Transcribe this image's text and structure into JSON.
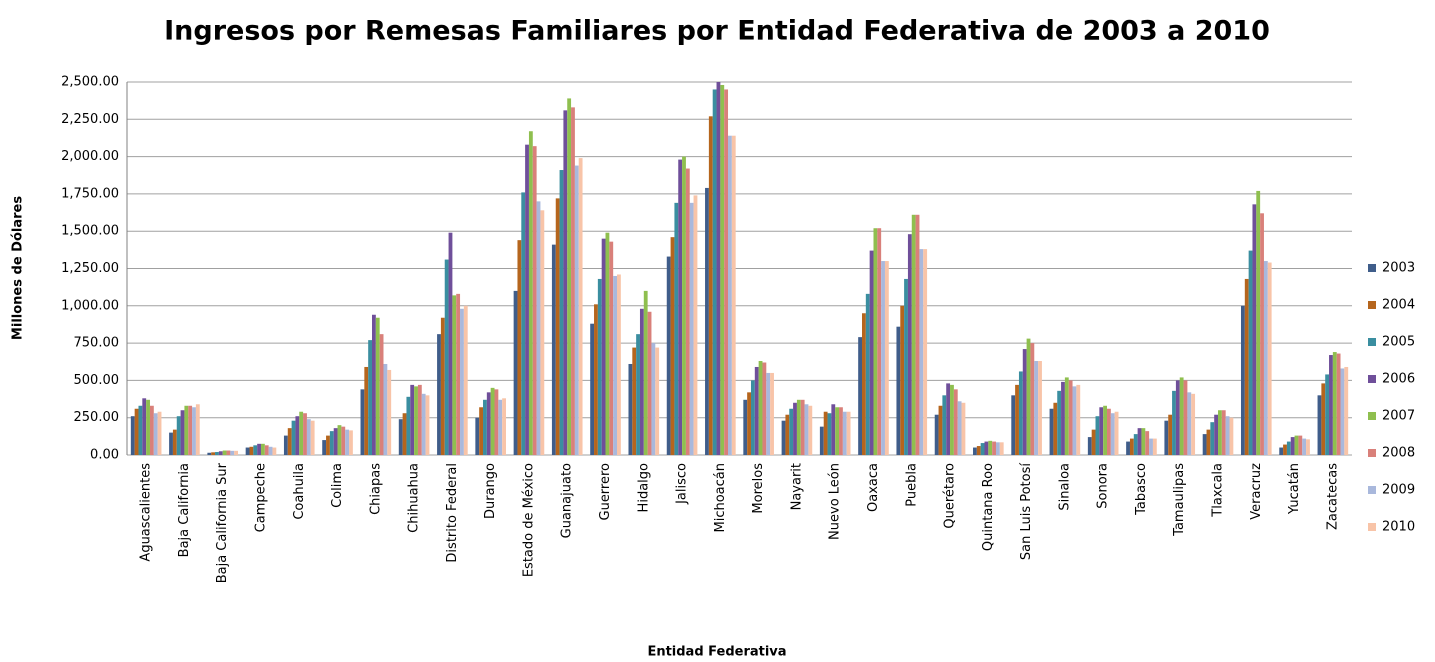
{
  "chart_data": {
    "type": "bar",
    "title": "Ingresos por Remesas Familiares por Entidad Federativa de 2003 a 2010",
    "x_label": "Entidad Federativa",
    "y_label": "Millones de Dólares",
    "categories": [
      "Aguascalientes",
      "Baja California",
      "Baja California Sur",
      "Campeche",
      "Coahuila",
      "Colima",
      "Chiapas",
      "Chihuahua",
      "Distrito Federal",
      "Durango",
      "Estado de México",
      "Guanajuato",
      "Guerrero",
      "Hidalgo",
      "Jalisco",
      "Michoacán",
      "Morelos",
      "Nayarit",
      "Nuevo León",
      "Oaxaca",
      "Puebla",
      "Querétaro",
      "Quintana Roo",
      "San Luis Potosí",
      "Sinaloa",
      "Sonora",
      "Tabasco",
      "Tamaulipas",
      "Tlaxcala",
      "Veracruz",
      "Yucatán",
      "Zacatecas"
    ],
    "series": [
      {
        "name": "2003",
        "color": "#3f5d8a",
        "values": [
          260,
          150,
          15,
          50,
          130,
          100,
          440,
          240,
          810,
          250,
          1100,
          1410,
          880,
          610,
          1330,
          1790,
          370,
          230,
          190,
          790,
          860,
          270,
          50,
          400,
          310,
          120,
          90,
          230,
          140,
          1000,
          50,
          400
        ]
      },
      {
        "name": "2004",
        "color": "#b5651d",
        "values": [
          310,
          170,
          18,
          55,
          180,
          130,
          590,
          280,
          920,
          320,
          1440,
          1720,
          1010,
          720,
          1460,
          2270,
          420,
          270,
          290,
          950,
          1000,
          330,
          60,
          470,
          350,
          170,
          110,
          270,
          170,
          1180,
          70,
          480
        ]
      },
      {
        "name": "2005",
        "color": "#3a8ea0",
        "values": [
          330,
          260,
          20,
          65,
          230,
          160,
          770,
          390,
          1310,
          370,
          1760,
          1910,
          1180,
          810,
          1690,
          2450,
          500,
          310,
          280,
          1080,
          1180,
          400,
          80,
          560,
          430,
          260,
          140,
          430,
          220,
          1370,
          90,
          540
        ]
      },
      {
        "name": "2006",
        "color": "#6f4f9a",
        "values": [
          380,
          300,
          25,
          75,
          260,
          180,
          940,
          470,
          1490,
          420,
          2080,
          2310,
          1450,
          980,
          1980,
          2500,
          590,
          350,
          340,
          1370,
          1480,
          480,
          90,
          710,
          490,
          320,
          180,
          500,
          270,
          1680,
          120,
          670
        ]
      },
      {
        "name": "2007",
        "color": "#8fbf4f",
        "values": [
          370,
          330,
          30,
          75,
          290,
          200,
          920,
          460,
          1070,
          450,
          2170,
          2390,
          1490,
          1100,
          2000,
          2480,
          630,
          370,
          320,
          1520,
          1610,
          470,
          95,
          780,
          520,
          330,
          180,
          520,
          300,
          1770,
          130,
          690
        ]
      },
      {
        "name": "2008",
        "color": "#d9807a",
        "values": [
          330,
          330,
          30,
          65,
          280,
          190,
          810,
          470,
          1080,
          440,
          2070,
          2330,
          1430,
          960,
          1920,
          2450,
          620,
          370,
          320,
          1520,
          1610,
          440,
          90,
          750,
          500,
          310,
          160,
          500,
          300,
          1620,
          130,
          680
        ]
      },
      {
        "name": "2009",
        "color": "#a9b8dc",
        "values": [
          280,
          320,
          28,
          55,
          240,
          170,
          610,
          410,
          980,
          370,
          1700,
          1940,
          1200,
          750,
          1690,
          2140,
          550,
          340,
          290,
          1300,
          1380,
          360,
          85,
          630,
          460,
          280,
          110,
          420,
          260,
          1300,
          110,
          580
        ]
      },
      {
        "name": "2010",
        "color": "#f8c4a8",
        "values": [
          290,
          340,
          28,
          50,
          230,
          165,
          570,
          400,
          1000,
          380,
          1640,
          1990,
          1210,
          720,
          1740,
          2140,
          550,
          330,
          290,
          1300,
          1380,
          350,
          85,
          630,
          470,
          290,
          110,
          410,
          250,
          1290,
          105,
          590
        ]
      }
    ],
    "ylim": [
      0,
      2500
    ],
    "yticks": [
      {
        "value": 0,
        "label": "0.00"
      },
      {
        "value": 250,
        "label": "250.00"
      },
      {
        "value": 500,
        "label": "500.00"
      },
      {
        "value": 750,
        "label": "750.00"
      },
      {
        "value": 1000,
        "label": "1,000.00"
      },
      {
        "value": 1250,
        "label": "1,250.00"
      },
      {
        "value": 1500,
        "label": "1,500.00"
      },
      {
        "value": 1750,
        "label": "1,750.00"
      },
      {
        "value": 2000,
        "label": "2,000.00"
      },
      {
        "value": 2250,
        "label": "2,250.00"
      },
      {
        "value": 2500,
        "label": "2,500.00"
      }
    ],
    "grid": true,
    "legend": "right"
  }
}
